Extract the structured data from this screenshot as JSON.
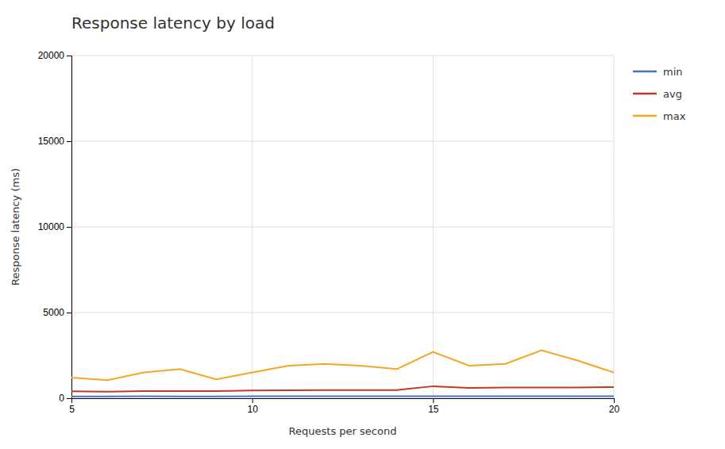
{
  "chart_data": {
    "type": "line",
    "title": "Response latency by load",
    "xlabel": "Requests per second",
    "ylabel": "Response latency (ms)",
    "x": [
      5,
      6,
      7,
      8,
      9,
      10,
      11,
      12,
      13,
      14,
      15,
      16,
      17,
      18,
      19,
      20
    ],
    "series": [
      {
        "name": "min",
        "color": "#4472c4",
        "values": [
          100,
          100,
          110,
          100,
          100,
          110,
          110,
          110,
          110,
          110,
          120,
          110,
          110,
          110,
          110,
          120
        ]
      },
      {
        "name": "avg",
        "color": "#c0392b",
        "values": [
          400,
          380,
          420,
          420,
          420,
          450,
          460,
          470,
          470,
          480,
          700,
          600,
          620,
          620,
          630,
          650
        ]
      },
      {
        "name": "max",
        "color": "#f5a623",
        "values": [
          1200,
          1050,
          1500,
          1700,
          1100,
          1500,
          1900,
          2000,
          1900,
          1700,
          2700,
          1900,
          2000,
          2800,
          2200,
          1500
        ]
      }
    ],
    "xlim": [
      5,
      20
    ],
    "ylim": [
      0,
      20000
    ],
    "xticks": [
      5,
      10,
      15,
      20
    ],
    "yticks": [
      0,
      5000,
      10000,
      15000,
      20000
    ],
    "grid": true,
    "legend": "right"
  }
}
